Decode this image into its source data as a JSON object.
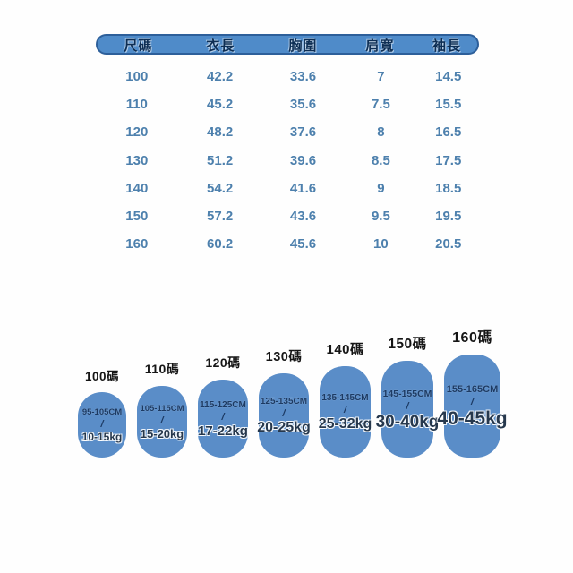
{
  "chart_data": {
    "type": "table",
    "title": "",
    "columns": [
      "尺碼",
      "衣長",
      "胸圍",
      "肩寬",
      "袖長"
    ],
    "rows": [
      [
        "100",
        "42.2",
        "33.6",
        "7",
        "14.5"
      ],
      [
        "110",
        "45.2",
        "35.6",
        "7.5",
        "15.5"
      ],
      [
        "120",
        "48.2",
        "37.6",
        "8",
        "16.5"
      ],
      [
        "130",
        "51.2",
        "39.6",
        "8.5",
        "17.5"
      ],
      [
        "140",
        "54.2",
        "41.6",
        "9",
        "18.5"
      ],
      [
        "150",
        "57.2",
        "43.6",
        "9.5",
        "19.5"
      ],
      [
        "160",
        "60.2",
        "45.6",
        "10",
        "20.5"
      ]
    ]
  },
  "size_badges": [
    {
      "label": "100碼",
      "height_range": "95-105CM",
      "separator": "/",
      "weight_range": "10-15kg"
    },
    {
      "label": "110碼",
      "height_range": "105-115CM",
      "separator": "/",
      "weight_range": "15-20kg"
    },
    {
      "label": "120碼",
      "height_range": "115-125CM",
      "separator": "/",
      "weight_range": "17-22kg"
    },
    {
      "label": "130碼",
      "height_range": "125-135CM",
      "separator": "/",
      "weight_range": "20-25kg"
    },
    {
      "label": "140碼",
      "height_range": "135-145CM",
      "separator": "/",
      "weight_range": "25-32kg"
    },
    {
      "label": "150碼",
      "height_range": "145-155CM",
      "separator": "/",
      "weight_range": "30-40kg"
    },
    {
      "label": "160碼",
      "height_range": "155-165CM",
      "separator": "/",
      "weight_range": "40-45kg"
    }
  ],
  "colors": {
    "bubble_blue": "#5a8dc8",
    "header_bar_blue": "#4f8bc9",
    "header_bar_border": "#2d5f9a",
    "header_text_navy": "#0d2e54",
    "table_value_blue": "#4d80ad",
    "badge_text_navy": "#1c3a63",
    "label_black": "#151515"
  }
}
